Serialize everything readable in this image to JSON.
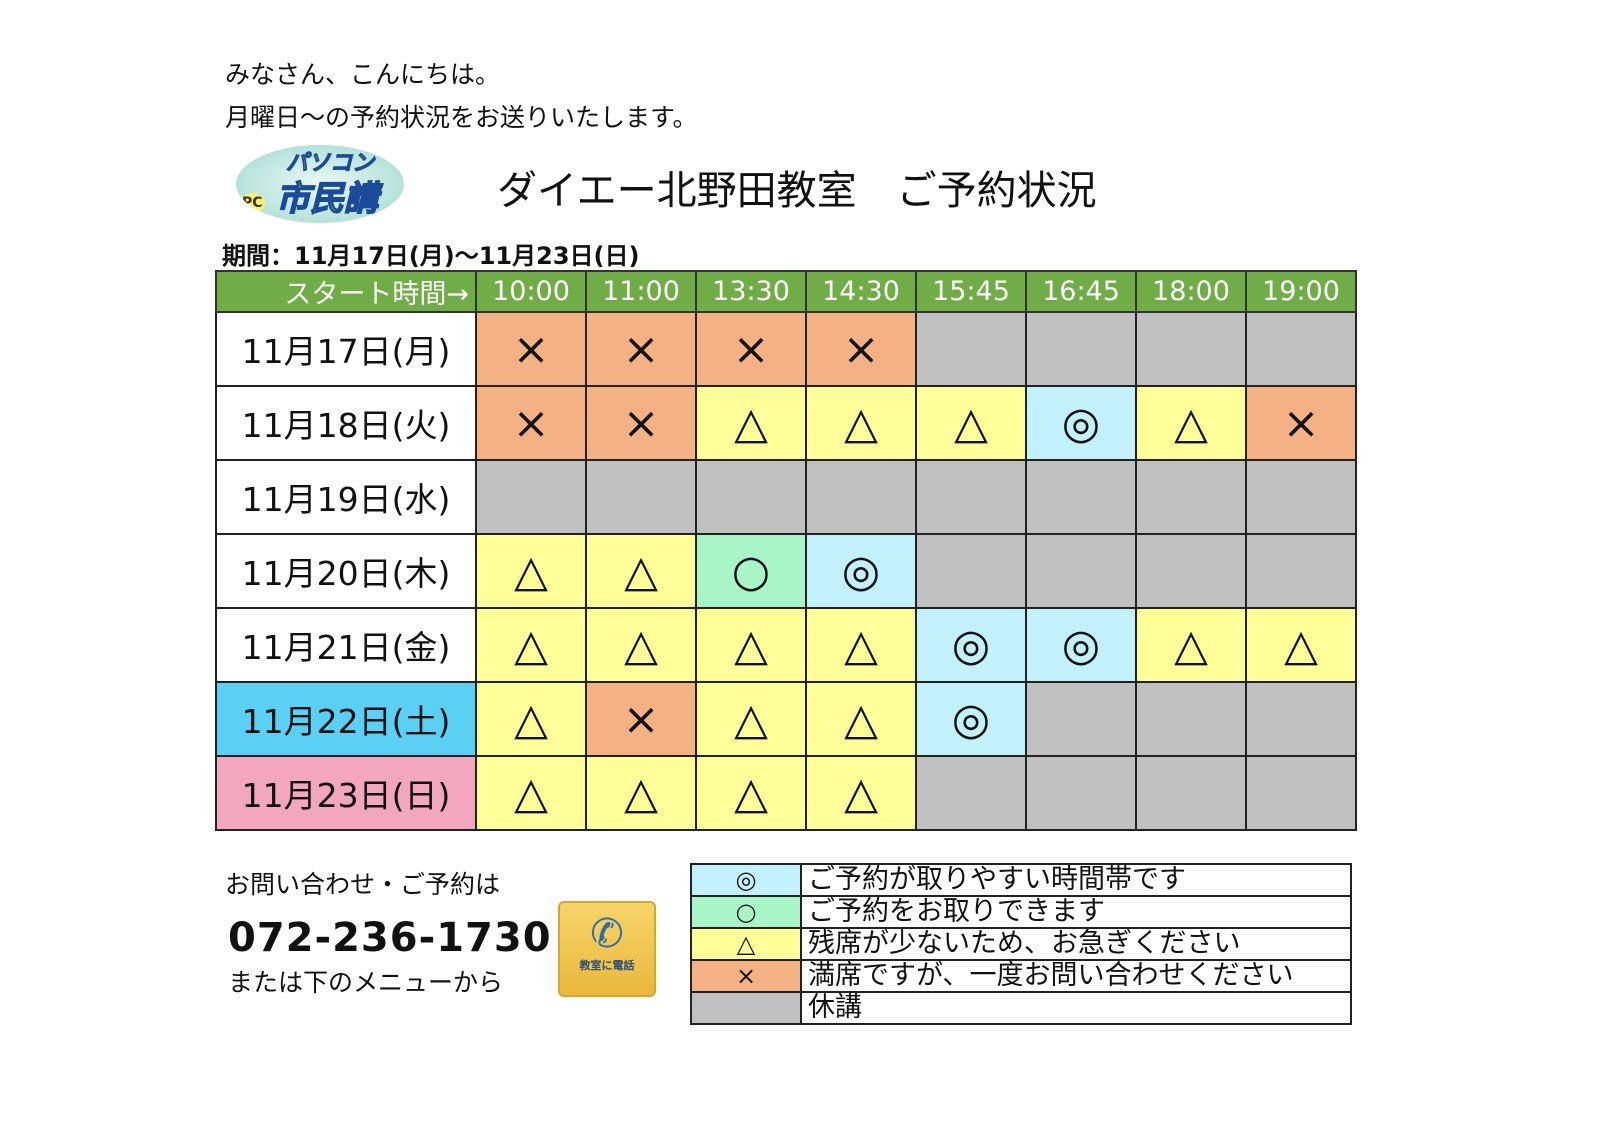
{
  "greeting": [
    "みなさん、こんにちは。",
    "月曜日～の予約状況をお送りいたします。"
  ],
  "logo": {
    "line1": "パソコン",
    "line2": "市民講座",
    "badge": "PC"
  },
  "title": "ダイエー北野田教室　ご予約状況",
  "period": "期間：11月17日(月)～11月23日(日)",
  "table": {
    "corner": "スタート時間→",
    "times": [
      "10:00",
      "11:00",
      "13:30",
      "14:30",
      "15:45",
      "16:45",
      "18:00",
      "19:00"
    ],
    "rows": [
      {
        "day": "11月17日(月)",
        "type": "",
        "cells": [
          "x",
          "x",
          "x",
          "x",
          "g",
          "g",
          "g",
          "g"
        ]
      },
      {
        "day": "11月18日(火)",
        "type": "",
        "cells": [
          "x",
          "x",
          "t",
          "t",
          "t",
          "d",
          "t",
          "x"
        ]
      },
      {
        "day": "11月19日(水)",
        "type": "",
        "cells": [
          "g",
          "g",
          "g",
          "g",
          "g",
          "g",
          "g",
          "g"
        ]
      },
      {
        "day": "11月20日(木)",
        "type": "",
        "cells": [
          "t",
          "t",
          "o",
          "d",
          "g",
          "g",
          "g",
          "g"
        ]
      },
      {
        "day": "11月21日(金)",
        "type": "",
        "cells": [
          "t",
          "t",
          "t",
          "t",
          "d",
          "d",
          "t",
          "t"
        ]
      },
      {
        "day": "11月22日(土)",
        "type": "sat",
        "cells": [
          "t",
          "x",
          "t",
          "t",
          "d",
          "g",
          "g",
          "g"
        ]
      },
      {
        "day": "11月23日(日)",
        "type": "sun",
        "cells": [
          "t",
          "t",
          "t",
          "t",
          "g",
          "g",
          "g",
          "g"
        ]
      }
    ]
  },
  "symbols": {
    "d": "◎",
    "o": "○",
    "t": "△",
    "x": "×",
    "g": ""
  },
  "colors": {
    "d": "#c2f0fb",
    "o": "#a8f5c8",
    "t": "#ffff99",
    "x": "#f4b183",
    "g": "#c0c0c0",
    "header": "#70ad47",
    "saturday": "#5bd0f5",
    "sunday": "#f2a7bf"
  },
  "legend": [
    {
      "code": "d",
      "symbol": "◎",
      "text": "ご予約が取りやすい時間帯です"
    },
    {
      "code": "o",
      "symbol": "○",
      "text": "ご予約をお取りできます"
    },
    {
      "code": "t",
      "symbol": "△",
      "text": "残席が少ないため、お急ぎください"
    },
    {
      "code": "x",
      "symbol": "×",
      "text": "満席ですが、一度お問い合わせください"
    },
    {
      "code": "g",
      "symbol": "",
      "text": "休講"
    }
  ],
  "contact": {
    "label": "お問い合わせ・ご予約は",
    "phone": "072-236-1730",
    "menu": "または下のメニューから",
    "call_button": "教室に電話",
    "call_icon": "phone-icon"
  }
}
